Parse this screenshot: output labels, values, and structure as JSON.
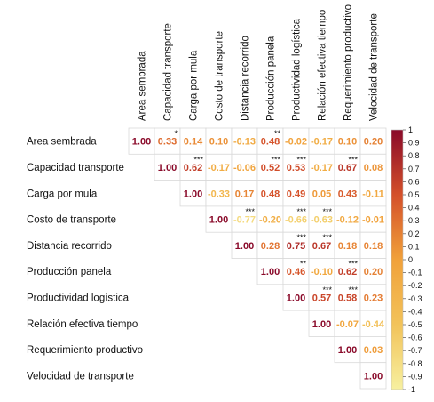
{
  "chart_data": {
    "type": "heatmap",
    "variables": [
      "Area sembrada",
      "Capacidad transporte",
      "Carga por mula",
      "Costo de transporte",
      "Distancia recorrido",
      "Producción panela",
      "Productividad logística",
      "Relación efectiva tiempo",
      "Requerimiento  productivo",
      "Velocidad de transporte"
    ],
    "matrix": [
      [
        "1.00",
        "0.33",
        "0.14",
        "0.10",
        "-0.13",
        "0.48",
        "-0.02",
        "-0.17",
        "0.10",
        "0.20"
      ],
      [
        null,
        "1.00",
        "0.62",
        "-0.17",
        "-0.06",
        "0.52",
        "0.53",
        "-0.17",
        "0.67",
        "0.08"
      ],
      [
        null,
        null,
        "1.00",
        "-0.33",
        "0.17",
        "0.48",
        "0.49",
        "0.05",
        "0.43",
        "-0.11"
      ],
      [
        null,
        null,
        null,
        "1.00",
        "-0.77",
        "-0.20",
        "-0.66",
        "-0.63",
        "-0.12",
        "-0.01"
      ],
      [
        null,
        null,
        null,
        null,
        "1.00",
        "0.28",
        "0.75",
        "0.67",
        "0.18",
        "0.18"
      ],
      [
        null,
        null,
        null,
        null,
        null,
        "1.00",
        "0.46",
        "-0.10",
        "0.62",
        "0.20"
      ],
      [
        null,
        null,
        null,
        null,
        null,
        null,
        "1.00",
        "0.57",
        "0.58",
        "0.23"
      ],
      [
        null,
        null,
        null,
        null,
        null,
        null,
        null,
        "1.00",
        "-0.07",
        "-0.44"
      ],
      [
        null,
        null,
        null,
        null,
        null,
        null,
        null,
        null,
        "1.00",
        "0.03"
      ],
      [
        null,
        null,
        null,
        null,
        null,
        null,
        null,
        null,
        null,
        "1.00"
      ]
    ],
    "significance": [
      [
        "",
        "*",
        "",
        "",
        "",
        "**",
        "",
        "",
        "",
        ""
      ],
      [
        "",
        "",
        "***",
        "",
        "",
        "***",
        "***",
        "",
        "***",
        ""
      ],
      [
        "",
        "",
        "",
        "",
        "",
        "",
        "",
        "",
        "",
        ""
      ],
      [
        "",
        "",
        "",
        "",
        "***",
        "",
        "***",
        "***",
        "",
        ""
      ],
      [
        "",
        "",
        "",
        "",
        "",
        "",
        "***",
        "***",
        "",
        ""
      ],
      [
        "",
        "",
        "",
        "",
        "",
        "",
        "**",
        "",
        "***",
        ""
      ],
      [
        "",
        "",
        "",
        "",
        "",
        "",
        "",
        "***",
        "***",
        ""
      ],
      [
        "",
        "",
        "",
        "",
        "",
        "",
        "",
        "",
        "",
        ""
      ],
      [
        "",
        "",
        "",
        "",
        "",
        "",
        "",
        "",
        "",
        ""
      ],
      [
        "",
        "",
        "",
        "",
        "",
        "",
        "",
        "",
        "",
        ""
      ]
    ],
    "colorbar": {
      "ticks": [
        "1",
        "0.9",
        "0.8",
        "0.7",
        "0.6",
        "0.5",
        "0.4",
        "0.3",
        "0.2",
        "0.1",
        "0",
        "-0.1",
        "-0.2",
        "-0.3",
        "-0.4",
        "-0.5",
        "-0.6",
        "-0.7",
        "-0.8",
        "-0.9",
        "-1"
      ],
      "range": [
        -1,
        1
      ],
      "placement": "right"
    },
    "colors": {
      "neg_strong": "#f7f0a0",
      "neg_mid": "#f2c35a",
      "zero": "#f1a13a",
      "pos_mid": "#d4502a",
      "pos_strong": "#8a0a2a"
    }
  }
}
